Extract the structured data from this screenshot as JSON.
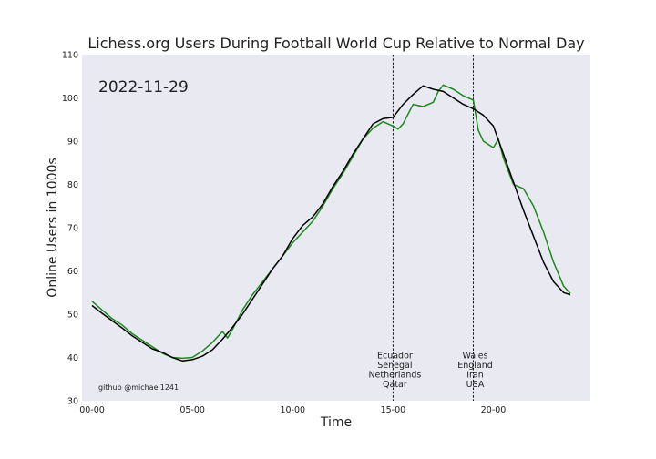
{
  "chart_data": {
    "type": "line",
    "title": "Lichess.org Users During Football World Cup Relative to Normal Day",
    "xlabel": "Time",
    "ylabel": "Online Users in 1000s",
    "date_label": "2022-11-29",
    "credit": "github @michael1241",
    "xlim": [
      "-00:30",
      "24:50"
    ],
    "ylim": [
      30,
      110
    ],
    "x_ticks": [
      "00-00",
      "05-00",
      "10-00",
      "15-00",
      "20-00"
    ],
    "y_ticks": [
      30,
      40,
      50,
      60,
      70,
      80,
      90,
      100,
      110
    ],
    "grid": false,
    "colors": {
      "background": "#e9e9f2",
      "normal": "#000000",
      "matchday": "#1b8a1b",
      "event_line": "#000000"
    },
    "events": [
      {
        "time": "15:00",
        "lines": [
          "Ecuador",
          "Senegal",
          "Netherlands",
          "Qatar"
        ]
      },
      {
        "time": "19:00",
        "lines": [
          "Wales",
          "England",
          "Iran",
          "USA"
        ]
      }
    ],
    "series": [
      {
        "color": "#000000",
        "x": [
          "00:00",
          "00:30",
          "01:00",
          "01:30",
          "02:00",
          "02:30",
          "03:00",
          "03:30",
          "04:00",
          "04:30",
          "05:00",
          "05:30",
          "06:00",
          "06:30",
          "07:00",
          "07:30",
          "08:00",
          "08:30",
          "09:00",
          "09:30",
          "10:00",
          "10:30",
          "11:00",
          "11:30",
          "12:00",
          "12:30",
          "13:00",
          "13:30",
          "14:00",
          "14:30",
          "15:00",
          "15:30",
          "16:00",
          "16:30",
          "17:00",
          "17:30",
          "18:00",
          "18:30",
          "19:00",
          "19:30",
          "20:00",
          "20:30",
          "21:00",
          "21:30",
          "22:00",
          "22:30",
          "23:00",
          "23:30",
          "23:50"
        ],
        "values": [
          52.0,
          50.2,
          48.5,
          46.8,
          45.0,
          43.5,
          42.0,
          41.2,
          40.0,
          39.2,
          39.5,
          40.3,
          41.8,
          44.2,
          47.0,
          50.0,
          53.5,
          57.0,
          60.5,
          63.5,
          67.5,
          70.5,
          72.5,
          75.5,
          79.5,
          83.0,
          87.0,
          90.5,
          94.0,
          95.2,
          95.5,
          98.5,
          100.8,
          102.8,
          102.0,
          101.5,
          100.0,
          98.5,
          97.5,
          96.0,
          93.5,
          87.0,
          80.5,
          74.0,
          68.0,
          62.0,
          57.5,
          55.0,
          54.5
        ]
      },
      {
        "color": "#1b8a1b",
        "x": [
          "00:00",
          "00:30",
          "01:00",
          "01:30",
          "02:00",
          "02:30",
          "03:00",
          "03:30",
          "04:00",
          "04:30",
          "05:00",
          "05:30",
          "06:00",
          "06:30",
          "06:45",
          "07:00",
          "07:30",
          "08:00",
          "08:30",
          "09:00",
          "09:30",
          "10:00",
          "10:30",
          "11:00",
          "11:30",
          "12:00",
          "12:30",
          "13:00",
          "13:30",
          "14:00",
          "14:30",
          "15:00",
          "15:15",
          "15:30",
          "16:00",
          "16:30",
          "17:00",
          "17:15",
          "17:30",
          "18:00",
          "18:30",
          "19:00",
          "19:15",
          "19:30",
          "20:00",
          "20:15",
          "20:30",
          "21:00",
          "21:30",
          "22:00",
          "22:30",
          "23:00",
          "23:30",
          "23:50"
        ],
        "values": [
          53.0,
          51.0,
          49.0,
          47.5,
          45.5,
          44.0,
          42.5,
          41.0,
          40.0,
          39.8,
          40.0,
          41.5,
          43.5,
          46.0,
          44.5,
          46.5,
          51.0,
          54.5,
          57.5,
          60.5,
          63.5,
          66.5,
          69.0,
          71.5,
          75.0,
          79.0,
          82.5,
          86.5,
          90.5,
          93.0,
          94.5,
          93.5,
          92.8,
          94.0,
          98.5,
          98.0,
          99.0,
          101.5,
          103.0,
          102.0,
          100.5,
          99.5,
          92.5,
          90.0,
          88.5,
          90.5,
          86.0,
          80.0,
          79.0,
          75.0,
          69.0,
          62.0,
          56.5,
          54.8
        ]
      }
    ]
  }
}
